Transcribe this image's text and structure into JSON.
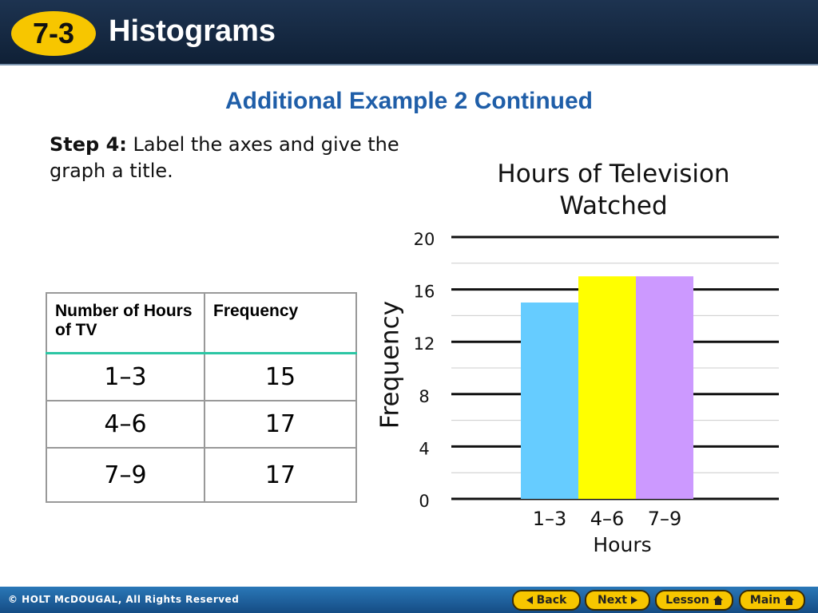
{
  "header": {
    "badge": "7-3",
    "title": "Histograms"
  },
  "subtitle": "Additional Example 2 Continued",
  "step": {
    "label": "Step 4:",
    "text": "Label the axes and give the graph a title."
  },
  "table": {
    "header": [
      "Number of Hours of TV",
      "Frequency"
    ],
    "rows": [
      [
        "1–3",
        "15"
      ],
      [
        "4–6",
        "17"
      ],
      [
        "7–9",
        "17"
      ]
    ]
  },
  "chart_data": {
    "type": "histogram",
    "title": "Hours of Television Watched",
    "x_label": "Hours",
    "y_label": "Frequency",
    "categories": [
      "1–3",
      "4–6",
      "7–9"
    ],
    "values": [
      15,
      17,
      17
    ],
    "colors": [
      "#66ccff",
      "#ffff00",
      "#cc99ff"
    ],
    "ylim": [
      0,
      20
    ],
    "yticks": [
      0,
      4,
      8,
      12,
      16,
      20
    ],
    "grid": true
  },
  "footer": {
    "copyright": "© HOLT McDOUGAL, All Rights Reserved",
    "buttons": [
      "Back",
      "Next",
      "Lesson",
      "Main"
    ]
  }
}
